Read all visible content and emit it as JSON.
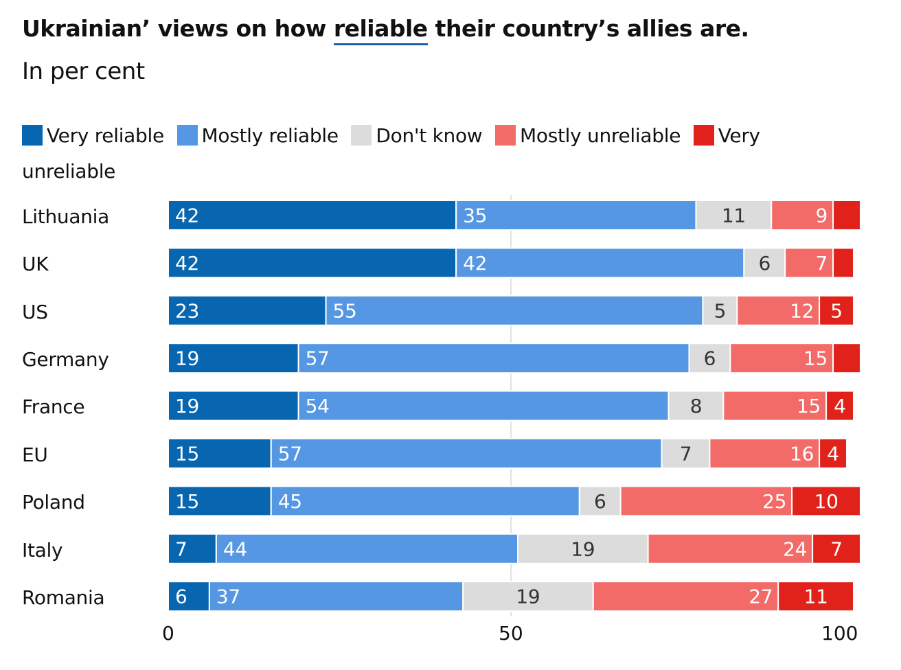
{
  "chart_data": {
    "type": "bar",
    "orientation": "horizontal",
    "stacked": true,
    "title_parts": [
      "Ukrainian’ views on how ",
      "reliable",
      " their country’s allies are."
    ],
    "subtitle": "In per cent",
    "categories": [
      "Lithuania",
      "UK",
      "US",
      "Germany",
      "France",
      "EU",
      "Poland",
      "Italy",
      "Romania"
    ],
    "series": [
      {
        "name": "Very reliable",
        "color": "#0866b0",
        "label_color": "#ffffff",
        "values": [
          42,
          42,
          23,
          19,
          19,
          15,
          15,
          7,
          6
        ],
        "labels": [
          "42",
          "42",
          "23",
          "19",
          "19",
          "15",
          "15",
          "7",
          "6"
        ]
      },
      {
        "name": "Mostly reliable",
        "color": "#5597e2",
        "label_color": "#ffffff",
        "values": [
          35,
          42,
          55,
          57,
          54,
          57,
          45,
          44,
          37
        ],
        "labels": [
          "35",
          "42",
          "55",
          "57",
          "54",
          "57",
          "45",
          "44",
          "37"
        ]
      },
      {
        "name": "Don't know",
        "color": "#dcdcdc",
        "label_color": "#333333",
        "values": [
          11,
          6,
          5,
          6,
          8,
          7,
          6,
          19,
          19
        ],
        "labels": [
          "11",
          "6",
          "5",
          "6",
          "8",
          "7",
          "6",
          "19",
          "19"
        ]
      },
      {
        "name": "Mostly unreliable",
        "color": "#f26b68",
        "label_color": "#ffffff",
        "values": [
          9,
          7,
          12,
          15,
          15,
          16,
          25,
          24,
          27
        ],
        "labels": [
          "9",
          "7",
          "12",
          "15",
          "15",
          "16",
          "25",
          "24",
          "27"
        ]
      },
      {
        "name": "Very unreliable",
        "color": "#e0221b",
        "label_color": "#ffffff",
        "values": [
          4,
          3,
          5,
          4,
          4,
          4,
          10,
          7,
          11
        ],
        "labels": [
          "",
          "",
          "5",
          "",
          "4",
          "4",
          "10",
          "7",
          "11"
        ]
      }
    ],
    "xlim": [
      0,
      100
    ],
    "xticks": [
      0,
      50,
      100
    ],
    "xticks_labels": [
      "0",
      "50",
      "100"
    ],
    "gridlines": [
      50
    ],
    "legend_position": "top"
  }
}
